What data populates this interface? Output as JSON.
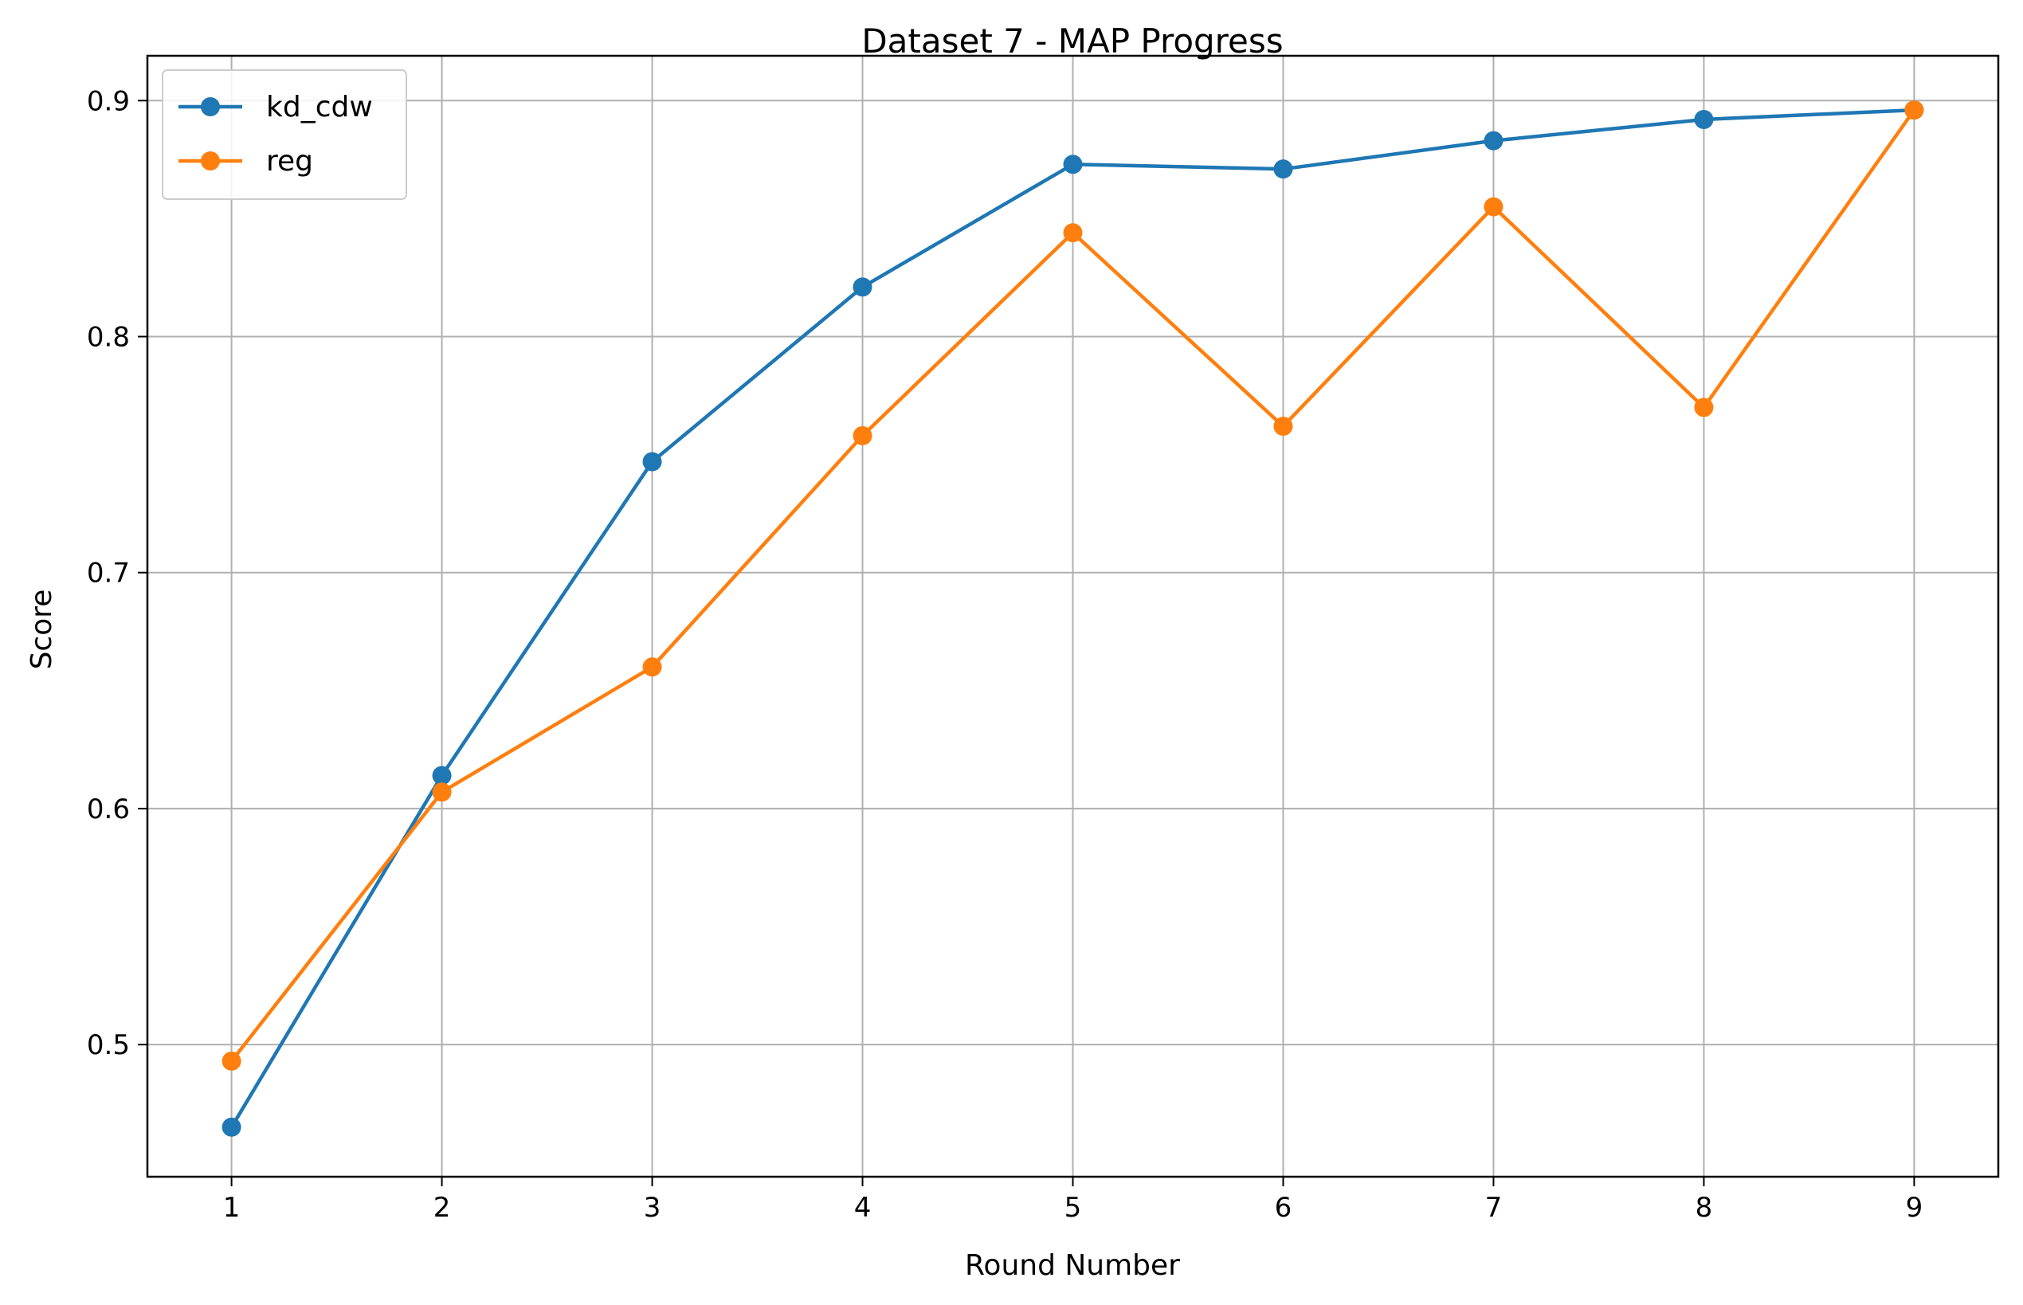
{
  "chart_data": {
    "type": "line",
    "title": "Dataset 7 - MAP Progress",
    "xlabel": "Round Number",
    "ylabel": "Score",
    "x": [
      1,
      2,
      3,
      4,
      5,
      6,
      7,
      8,
      9
    ],
    "xlim": [
      0.6,
      9.4
    ],
    "ylim": [
      0.444,
      0.919
    ],
    "xticks": [
      1,
      2,
      3,
      4,
      5,
      6,
      7,
      8,
      9
    ],
    "xtick_labels": [
      "1",
      "2",
      "3",
      "4",
      "5",
      "6",
      "7",
      "8",
      "9"
    ],
    "yticks": [
      0.5,
      0.6,
      0.7,
      0.8,
      0.9
    ],
    "ytick_labels": [
      "0.5",
      "0.6",
      "0.7",
      "0.8",
      "0.9"
    ],
    "grid": true,
    "legend_position": "top-left",
    "series": [
      {
        "name": "kd_cdw",
        "color": "#1f77b4",
        "marker": "circle",
        "values": [
          0.465,
          0.614,
          0.747,
          0.821,
          0.873,
          0.871,
          0.883,
          0.892,
          0.896
        ]
      },
      {
        "name": "reg",
        "color": "#ff7f0e",
        "marker": "circle",
        "values": [
          0.493,
          0.607,
          0.66,
          0.758,
          0.844,
          0.762,
          0.855,
          0.77,
          0.896
        ]
      }
    ]
  }
}
